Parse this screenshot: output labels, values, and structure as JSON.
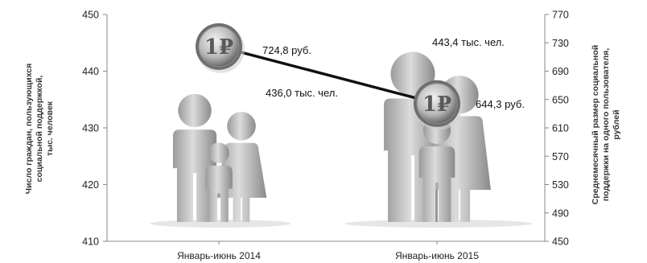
{
  "chart_data": {
    "type": "bar",
    "style": "pictogram-people-with-coin-line",
    "categories": [
      "Январь-июнь 2014",
      "Январь-июнь 2015"
    ],
    "series": [
      {
        "name": "Число граждан, пользующихся социальной поддержкой, тыс. человек",
        "axis": "left",
        "mark": "people-pictogram",
        "values": [
          436.0,
          443.4
        ],
        "labels": [
          "436,0 тыс. чел.",
          "443,4 тыс. чел."
        ]
      },
      {
        "name": "Среднемесячный размер социальной поддержки на одного пользователя, рублей",
        "axis": "right",
        "mark": "ruble-coin-line",
        "values": [
          724.8,
          644.3
        ],
        "labels": [
          "724,8 руб.",
          "644,3 руб."
        ]
      }
    ],
    "y_left": {
      "title_lines": [
        "Число граждан, пользующихся",
        "социальной поддержкой,",
        "тыс. человек"
      ],
      "ylim": [
        410,
        450
      ],
      "ticks": [
        410,
        420,
        430,
        440,
        450
      ]
    },
    "y_right": {
      "title_lines": [
        "Среднемесячный размер социальной",
        "поддержки на одного пользователя,",
        "рублей"
      ],
      "ylim": [
        450,
        770
      ],
      "ticks": [
        450,
        490,
        530,
        570,
        610,
        650,
        690,
        730,
        770
      ]
    },
    "grid": false,
    "legend": "none",
    "colors": {
      "figure_light": "#c8c8c8",
      "figure_dark": "#7a7a7a",
      "coin_light": "#d9d9d9",
      "coin_dark": "#6e6e6e",
      "line": "#111111",
      "axis": "#888888"
    },
    "coin_symbol": "1₽"
  }
}
